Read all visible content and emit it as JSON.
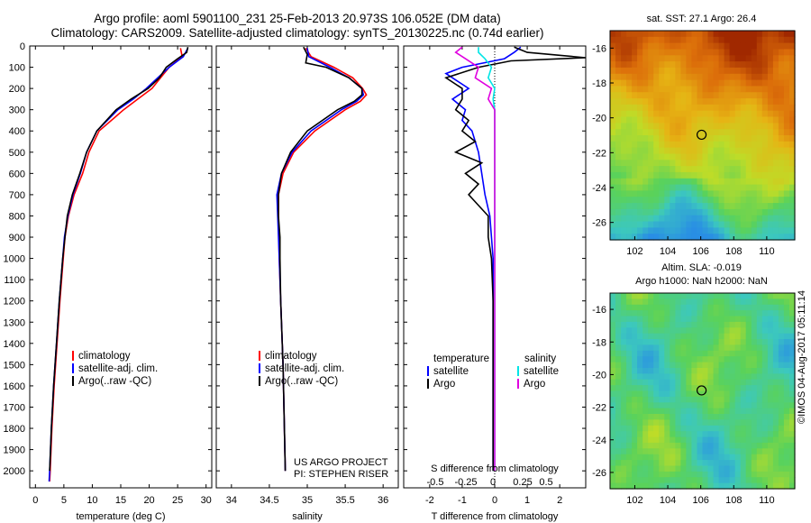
{
  "titles": {
    "line1": "Argo profile: aoml 5901100_231 25-Feb-2013 20.973S 106.052E (DM data)",
    "line2": "Climatology: CARS2009. Satellite-adjusted climatology: synTS_20130225.nc (0.74d earlier)"
  },
  "colors": {
    "climatology": "#ff0000",
    "satellite": "#0000ff",
    "argo": "#000000",
    "salinity_sat": "#00e5e5",
    "salinity_argo": "#e000e0"
  },
  "chart_data": [
    {
      "type": "line",
      "xlabel": "temperature (deg C)",
      "ylabel": "",
      "xlim": [
        -1,
        31
      ],
      "ylim": [
        2080,
        0
      ],
      "xticks": [
        "0",
        "5",
        "10",
        "15",
        "20",
        "25",
        "30"
      ],
      "yticks": [
        "0",
        "100",
        "200",
        "300",
        "400",
        "500",
        "600",
        "700",
        "800",
        "900",
        "1000",
        "1100",
        "1200",
        "1300",
        "1400",
        "1500",
        "1600",
        "1700",
        "1800",
        "1900",
        "2000"
      ],
      "legend": [
        "climatology",
        "satellite-adj. clim.",
        "Argo(..raw -QC)"
      ],
      "series": [
        {
          "name": "climatology",
          "depth": [
            10,
            50,
            100,
            150,
            200,
            250,
            300,
            400,
            500,
            600,
            700,
            800,
            900,
            1000,
            1200,
            1400,
            1600,
            1800,
            2000,
            2050
          ],
          "values": [
            25.5,
            25.8,
            23.5,
            22,
            20.5,
            18,
            15.5,
            11.2,
            9.4,
            8.3,
            6.8,
            5.8,
            5.2,
            4.9,
            4.3,
            3.8,
            3.3,
            2.9,
            2.6,
            2.5
          ]
        },
        {
          "name": "satellite-adj. clim.",
          "depth": [
            10,
            50,
            100,
            150,
            200,
            250,
            300,
            400,
            500,
            600,
            700,
            800,
            900,
            1000,
            1200,
            1400,
            1600,
            1800,
            2000,
            2050
          ],
          "values": [
            26.8,
            26,
            23.5,
            21.5,
            19.5,
            17.2,
            14.5,
            10.8,
            9.0,
            7.9,
            6.6,
            5.7,
            5.1,
            4.8,
            4.2,
            3.7,
            3.2,
            2.8,
            2.5,
            2.4
          ]
        },
        {
          "name": "Argo(..raw -QC)",
          "depth": [
            5,
            30,
            60,
            100,
            150,
            200,
            250,
            300,
            400,
            500,
            600,
            700,
            800,
            900,
            1000,
            1200,
            1400,
            1600,
            1800,
            2000
          ],
          "values": [
            26.8,
            26.6,
            25,
            23,
            21.8,
            19.8,
            16.8,
            14.2,
            10.8,
            9.0,
            7.8,
            6.5,
            5.6,
            5.2,
            4.8,
            4.2,
            3.7,
            3.2,
            2.8,
            2.5
          ]
        }
      ]
    },
    {
      "type": "line",
      "xlabel": "salinity",
      "xlim": [
        33.8,
        36.2
      ],
      "ylim": [
        2080,
        0
      ],
      "xticks": [
        "34",
        "34.5",
        "35",
        "35.5",
        "36"
      ],
      "legend": [
        "climatology",
        "satellite-adj. clim.",
        "Argo(..raw -QC)"
      ],
      "annotation": [
        "US ARGO PROJECT",
        "PI: STEPHEN RISER"
      ],
      "series": [
        {
          "name": "climatology",
          "depth": [
            10,
            50,
            100,
            150,
            200,
            230,
            260,
            300,
            400,
            500,
            600,
            700,
            800,
            1000,
            1200,
            1500,
            2000
          ],
          "values": [
            34.98,
            35.05,
            35.35,
            35.6,
            35.73,
            35.78,
            35.7,
            35.5,
            35.1,
            34.82,
            34.68,
            34.62,
            34.62,
            34.63,
            34.65,
            34.68,
            34.71
          ]
        },
        {
          "name": "satellite-adj. clim.",
          "depth": [
            10,
            50,
            100,
            150,
            200,
            230,
            260,
            300,
            400,
            500,
            600,
            700,
            800,
            1000,
            1200,
            1500,
            2000
          ],
          "values": [
            35.0,
            35.02,
            35.3,
            35.55,
            35.72,
            35.74,
            35.65,
            35.45,
            35.05,
            34.8,
            34.66,
            34.6,
            34.61,
            34.63,
            34.65,
            34.68,
            34.71
          ]
        },
        {
          "name": "Argo(..raw -QC)",
          "depth": [
            5,
            40,
            80,
            100,
            150,
            200,
            230,
            260,
            300,
            400,
            500,
            600,
            700,
            800,
            900,
            1000,
            1200,
            1500,
            2000
          ],
          "values": [
            34.95,
            35.0,
            34.98,
            35.25,
            35.55,
            35.72,
            35.72,
            35.62,
            35.4,
            35.0,
            34.78,
            34.66,
            34.62,
            34.62,
            34.64,
            34.64,
            34.65,
            34.68,
            34.71
          ]
        }
      ]
    },
    {
      "type": "line",
      "xlabel": "T difference from climatology",
      "xlabel_top": "S difference from climatology",
      "xlim": [
        -2.8,
        2.8
      ],
      "ylim": [
        2080,
        0
      ],
      "xticks": [
        "-2",
        "-1",
        "0",
        "1",
        "2"
      ],
      "xticks_top": [
        "-0.5",
        "-0.25",
        "0",
        "0.25",
        "0.5"
      ],
      "legend_temperature": [
        "temperature",
        "satellite",
        "Argo"
      ],
      "legend_salinity": [
        "salinity",
        "satellite",
        "Argo"
      ],
      "series": [
        {
          "name": "temperature satellite",
          "depth": [
            5,
            30,
            60,
            100,
            130,
            160,
            200,
            250,
            300,
            350,
            400,
            450,
            500,
            600,
            700,
            800,
            900,
            1000,
            1200,
            1500,
            2000
          ],
          "values": [
            0.8,
            0.6,
            0.3,
            -1.0,
            -1.5,
            -1.2,
            -0.8,
            -1.3,
            -0.9,
            -1.0,
            -0.7,
            -0.6,
            -0.5,
            -0.4,
            -0.3,
            -0.15,
            -0.1,
            -0.05,
            -0.05,
            -0.05,
            -0.05
          ]
        },
        {
          "name": "temperature Argo",
          "depth": [
            5,
            30,
            55,
            70,
            100,
            150,
            200,
            250,
            300,
            350,
            400,
            450,
            500,
            550,
            600,
            650,
            700,
            800,
            900,
            1000,
            1200,
            1500,
            2000
          ],
          "values": [
            0.6,
            1.0,
            2.8,
            0.5,
            -0.5,
            -1.5,
            -1.0,
            -1.0,
            -1.2,
            -0.8,
            -1.0,
            -0.6,
            -1.2,
            -0.4,
            -0.9,
            -0.5,
            -0.8,
            -0.2,
            -0.2,
            -0.1,
            -0.05,
            -0.05,
            -0.05
          ]
        },
        {
          "name": "salinity satellite",
          "depth": [
            5,
            30,
            60,
            100,
            150,
            200,
            250,
            300,
            400,
            500,
            600,
            800,
            1000,
            1500,
            2000
          ],
          "values": [
            -0.5,
            -0.5,
            -0.3,
            -0.1,
            -0.2,
            0.0,
            -0.05,
            0.0,
            0.0,
            0.0,
            0.0,
            0.0,
            0.0,
            0.0,
            0.0
          ]
        },
        {
          "name": "salinity Argo",
          "depth": [
            5,
            30,
            60,
            100,
            150,
            200,
            250,
            300,
            400,
            500,
            600,
            800,
            1000,
            1500,
            2000
          ],
          "values": [
            -1.0,
            -1.2,
            -0.9,
            -0.5,
            -0.6,
            -0.1,
            -0.2,
            0.0,
            0.0,
            0.0,
            0.0,
            0.0,
            0.0,
            0.0,
            0.0
          ]
        }
      ]
    },
    {
      "type": "heatmap",
      "title": "sat. SST: 27.1  Argo: 26.4",
      "xlim": [
        100.5,
        111.7
      ],
      "ylim": [
        -27,
        -15
      ],
      "xticks": [
        "102",
        "104",
        "106",
        "108",
        "110"
      ],
      "yticks": [
        "-16",
        "-18",
        "-20",
        "-22",
        "-24",
        "-26"
      ],
      "marker": {
        "lon": 106.05,
        "lat": -20.97
      }
    },
    {
      "type": "heatmap",
      "title": [
        "Altim. SLA: -0.019",
        "Argo h1000: NaN h2000: NaN"
      ],
      "xlim": [
        100.5,
        111.7
      ],
      "ylim": [
        -27,
        -15
      ],
      "xticks": [
        "102",
        "104",
        "106",
        "108",
        "110"
      ],
      "yticks": [
        "-16",
        "-18",
        "-20",
        "-22",
        "-24",
        "-26"
      ],
      "marker": {
        "lon": 106.05,
        "lat": -20.97
      }
    }
  ],
  "imos": "©IMOS 04-Aug-2017 05:11:14"
}
